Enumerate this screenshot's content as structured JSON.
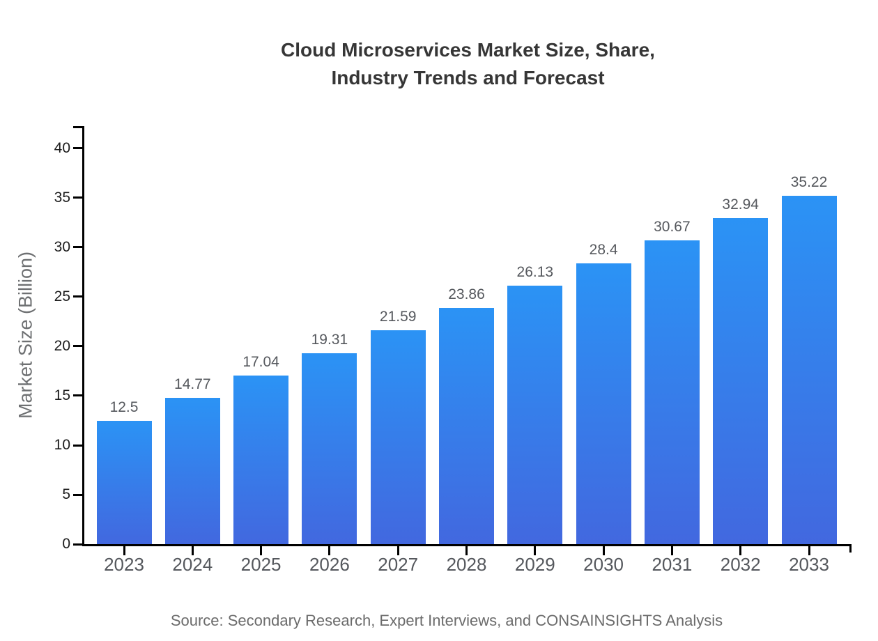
{
  "chart": {
    "title_line1": "Cloud Microservices Market Size, Share,",
    "title_line2": "Industry Trends and Forecast",
    "ylabel": "Market Size (Billion)",
    "source": "Source: Secondary Research, Expert Interviews, and CONSAINSIGHTS Analysis"
  },
  "chart_data": {
    "type": "bar",
    "title": "Cloud Microservices Market Size, Share, Industry Trends and Forecast",
    "categories": [
      "2023",
      "2024",
      "2025",
      "2026",
      "2027",
      "2028",
      "2029",
      "2030",
      "2031",
      "2032",
      "2033"
    ],
    "values": [
      12.5,
      14.77,
      17.04,
      19.31,
      21.59,
      23.86,
      26.13,
      28.4,
      30.67,
      32.94,
      35.22
    ],
    "value_labels": [
      "12.5",
      "14.77",
      "17.04",
      "19.31",
      "21.59",
      "23.86",
      "26.13",
      "28.4",
      "30.67",
      "32.94",
      "35.22"
    ],
    "xlabel": "",
    "ylabel": "Market Size (Billion)",
    "ylim": [
      0,
      42.25
    ],
    "yticks": [
      0,
      5,
      10,
      15,
      20,
      25,
      30,
      35,
      40
    ],
    "grid": false,
    "legend": false,
    "source": "Source: Secondary Research, Expert Interviews, and CONSAINSIGHTS Analysis",
    "colors": {
      "bar_gradient_top": "#2b93f5",
      "bar_gradient_bottom": "#4268df",
      "axis": "#000000",
      "title_text": "#363636",
      "tick_label_text": "#1b1b1b",
      "category_label_text": "#55585d",
      "value_label_text": "#55585d",
      "axis_title_text": "#6e7072",
      "source_text": "#6b6b6b",
      "background": "#ffffff"
    }
  }
}
